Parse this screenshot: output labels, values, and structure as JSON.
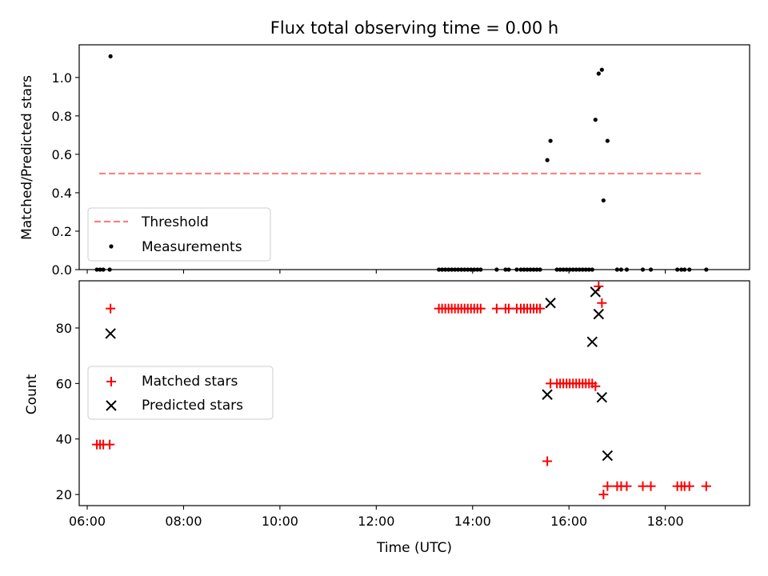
{
  "chart_data": [
    {
      "type": "scatter",
      "title": "Flux total observing time = 0.00 h",
      "xlabel": "",
      "ylabel": "Matched/Predicted stars",
      "xlim": [
        "05:50",
        "19:45"
      ],
      "ylim": [
        0,
        1.17
      ],
      "x_tick_labels": [],
      "y_ticks": [
        0.0,
        0.2,
        0.4,
        0.6,
        0.8,
        1.0
      ],
      "y_tick_labels": [
        "0.0",
        "0.2",
        "0.4",
        "0.6",
        "0.8",
        "1.0"
      ],
      "legend_position": "lower-left",
      "series": [
        {
          "name": "Threshold",
          "kind": "dashed-line",
          "color": "#ff7f7f",
          "x": [
            "06:15",
            "18:48"
          ],
          "y": [
            0.5,
            0.5
          ]
        },
        {
          "name": "Measurements",
          "kind": "dots",
          "color": "#000000",
          "x": [
            "06:12",
            "06:16",
            "06:20",
            "06:28",
            "06:29",
            "13:18",
            "13:22",
            "13:26",
            "13:30",
            "13:34",
            "13:38",
            "13:42",
            "13:46",
            "13:50",
            "13:54",
            "13:58",
            "14:02",
            "14:06",
            "14:10",
            "14:30",
            "14:41",
            "14:45",
            "14:55",
            "15:00",
            "15:04",
            "15:08",
            "15:12",
            "15:16",
            "15:20",
            "15:24",
            "15:33",
            "15:37",
            "15:45",
            "15:49",
            "15:53",
            "15:57",
            "16:01",
            "16:05",
            "16:09",
            "16:13",
            "16:17",
            "16:21",
            "16:25",
            "16:29",
            "16:33",
            "16:37",
            "16:41",
            "16:43",
            "16:48",
            "17:00",
            "17:05",
            "17:12",
            "17:32",
            "17:42",
            "18:15",
            "18:20",
            "18:24",
            "18:30",
            "18:51"
          ],
          "y": [
            0,
            0,
            0,
            0,
            1.11,
            0,
            0,
            0,
            0,
            0,
            0,
            0,
            0,
            0,
            0,
            0,
            0,
            0,
            0,
            0,
            0,
            0,
            0,
            0,
            0,
            0,
            0,
            0,
            0,
            0,
            0.57,
            0.67,
            0,
            0,
            0,
            0,
            0,
            0,
            0,
            0,
            0,
            0,
            0,
            0,
            0.78,
            1.02,
            1.04,
            0.36,
            0.67,
            0,
            0,
            0,
            0,
            0,
            0,
            0,
            0,
            0,
            0
          ]
        }
      ]
    },
    {
      "type": "scatter",
      "title": "",
      "xlabel": "Time (UTC)",
      "ylabel": "Count",
      "xlim": [
        "05:50",
        "19:45"
      ],
      "ylim": [
        16,
        97
      ],
      "x_ticks": [
        "06:00",
        "08:00",
        "10:00",
        "12:00",
        "14:00",
        "16:00",
        "18:00"
      ],
      "x_tick_labels": [
        "06:00",
        "08:00",
        "10:00",
        "12:00",
        "14:00",
        "16:00",
        "18:00"
      ],
      "y_ticks": [
        20,
        40,
        60,
        80
      ],
      "y_tick_labels": [
        "20",
        "40",
        "60",
        "80"
      ],
      "legend_position": "center-left",
      "series": [
        {
          "name": "Matched stars",
          "kind": "plus",
          "color": "#ff0000",
          "x": [
            "06:12",
            "06:16",
            "06:20",
            "06:28",
            "06:29",
            "13:18",
            "13:22",
            "13:26",
            "13:30",
            "13:34",
            "13:38",
            "13:42",
            "13:46",
            "13:50",
            "13:54",
            "13:58",
            "14:02",
            "14:06",
            "14:10",
            "14:30",
            "14:41",
            "14:45",
            "14:55",
            "15:00",
            "15:04",
            "15:08",
            "15:12",
            "15:16",
            "15:20",
            "15:24",
            "15:33",
            "15:37",
            "15:45",
            "15:49",
            "15:53",
            "15:57",
            "16:01",
            "16:05",
            "16:09",
            "16:13",
            "16:17",
            "16:21",
            "16:25",
            "16:29",
            "16:33",
            "16:37",
            "16:41",
            "16:43",
            "16:48",
            "17:00",
            "17:05",
            "17:12",
            "17:32",
            "17:42",
            "18:15",
            "18:20",
            "18:24",
            "18:30",
            "18:51"
          ],
          "y": [
            38,
            38,
            38,
            38,
            87,
            87,
            87,
            87,
            87,
            87,
            87,
            87,
            87,
            87,
            87,
            87,
            87,
            87,
            87,
            87,
            87,
            87,
            87,
            87,
            87,
            87,
            87,
            87,
            87,
            87,
            32,
            60,
            60,
            60,
            60,
            60,
            60,
            60,
            60,
            60,
            60,
            60,
            60,
            60,
            59,
            95,
            89,
            20,
            23,
            23,
            23,
            23,
            23,
            23,
            23,
            23,
            23,
            23,
            23
          ]
        },
        {
          "name": "Predicted stars",
          "kind": "x",
          "color": "#000000",
          "x": [
            "06:29",
            "15:33",
            "15:37",
            "16:29",
            "16:33",
            "16:37",
            "16:41",
            "16:48"
          ],
          "y": [
            78,
            56,
            89,
            75,
            93,
            85,
            55,
            34
          ]
        }
      ]
    }
  ]
}
